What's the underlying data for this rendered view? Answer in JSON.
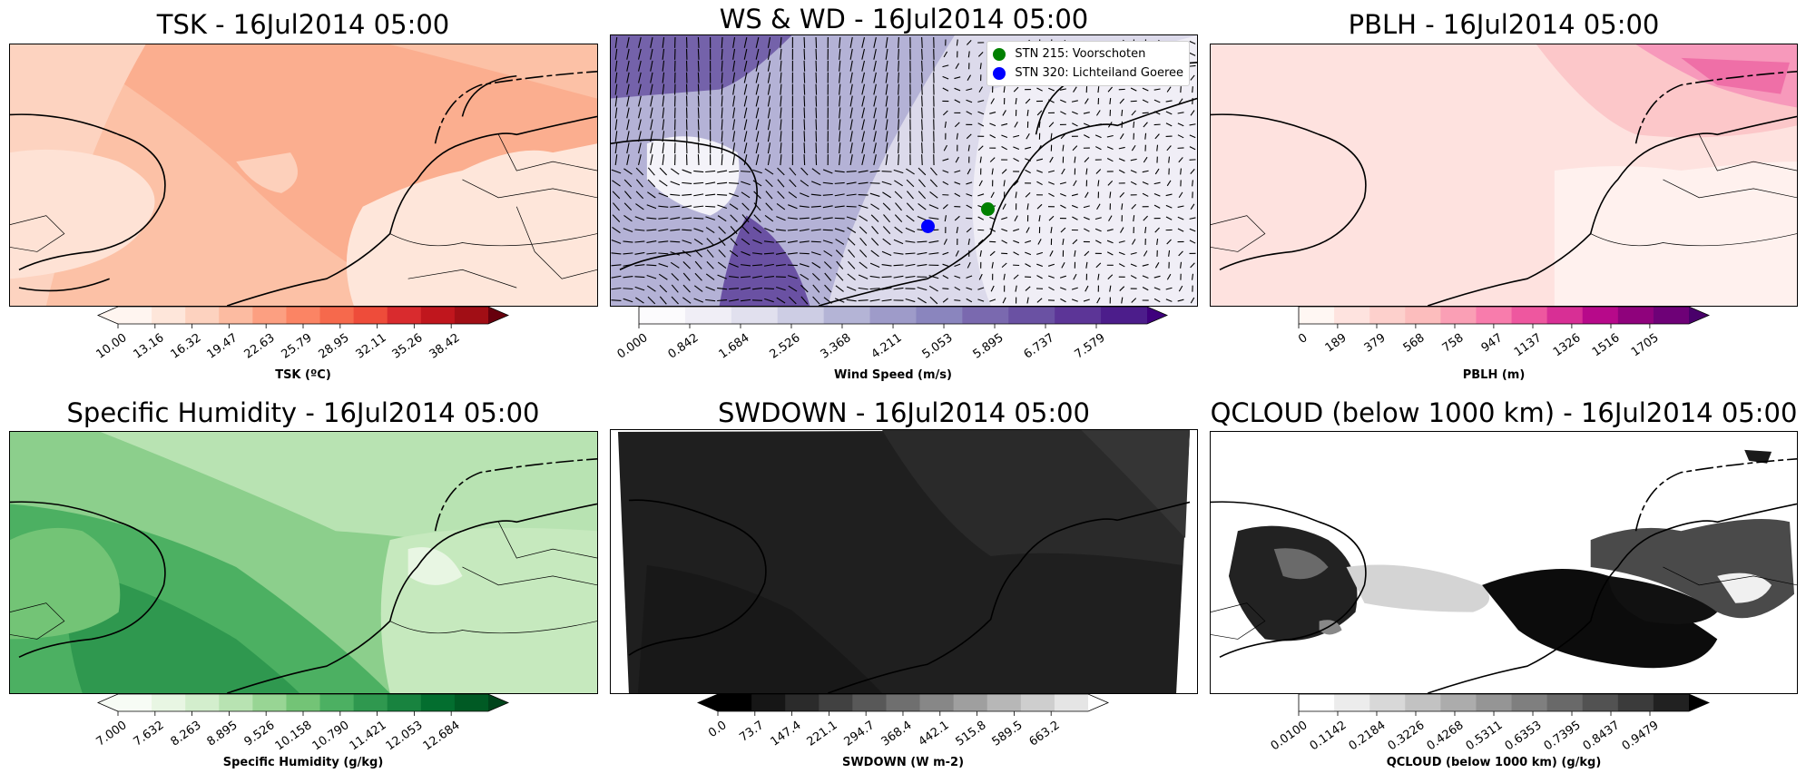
{
  "colors": {
    "tsk_ramp": [
      "#fff5f0",
      "#fee6da",
      "#fdd2bf",
      "#fcbba1",
      "#fc9f81",
      "#fb8464",
      "#f6694c",
      "#ee4c3a",
      "#d92b2e",
      "#c0161d",
      "#a10e15",
      "#67000d"
    ],
    "ws_ramp": [
      "#fcfbfd",
      "#f0eef6",
      "#e1e0ee",
      "#cdcde4",
      "#b4b4d6",
      "#9e9bc9",
      "#8a85be",
      "#7a69af",
      "#6a51a3",
      "#5c3597",
      "#4c1d8b",
      "#3f007d"
    ],
    "pblh_ramp": [
      "#fff7f3",
      "#fee3df",
      "#fdd0cc",
      "#fcbdbd",
      "#fa9fb5",
      "#f87cac",
      "#ee579f",
      "#d82f95",
      "#b7098a",
      "#8f027c",
      "#6e0177",
      "#49006a"
    ],
    "q_ramp": [
      "#f7fcf5",
      "#e8f6e3",
      "#d3eecd",
      "#b8e3b2",
      "#98d594",
      "#73c476",
      "#4cb062",
      "#2f984f",
      "#18833f",
      "#036e2f",
      "#005a24",
      "#00441b"
    ],
    "sw_ramp": [
      "#000000",
      "#161616",
      "#2b2b2b",
      "#414141",
      "#585858",
      "#6f6f6f",
      "#878787",
      "#9f9f9f",
      "#b7b7b7",
      "#cecece",
      "#e5e5e5",
      "#ffffff"
    ],
    "qc_ramp": [
      "#ffffff",
      "#ececec",
      "#d8d8d8",
      "#c2c2c2",
      "#acacac",
      "#959595",
      "#7f7f7f",
      "#696969",
      "#525252",
      "#3b3b3b",
      "#212121",
      "#000000"
    ],
    "stn215": "#008000",
    "stn320": "#0000ff"
  },
  "chart_data": [
    {
      "type": "heatmap",
      "title": "TSK - 16Jul2014 05:00",
      "colorbar_label": "TSK (ºC)",
      "colorbar_ticks": [
        "10.00",
        "13.16",
        "16.32",
        "19.47",
        "22.63",
        "25.79",
        "28.95",
        "32.11",
        "35.26",
        "38.42"
      ],
      "range": [
        10.0,
        41.58
      ],
      "extend": "both"
    },
    {
      "type": "heatmap",
      "title": "WS & WD - 16Jul2014 05:00",
      "colorbar_label": "Wind Speed (m/s)",
      "colorbar_ticks": [
        "0.000",
        "0.842",
        "1.684",
        "2.526",
        "3.368",
        "4.211",
        "5.053",
        "5.895",
        "6.737",
        "7.579"
      ],
      "range": [
        0.0,
        8.421
      ],
      "extend": "max",
      "legend": {
        "placement": "top-right",
        "entries": [
          "STN 215: Voorschoten",
          "STN 320: Lichteiland Goeree"
        ]
      },
      "stations": [
        {
          "name": "STN 215: Voorschoten",
          "lon": 4.44,
          "lat": 52.14
        },
        {
          "name": "STN 320: Lichteiland Goeree",
          "lon": 3.67,
          "lat": 51.93
        }
      ]
    },
    {
      "type": "heatmap",
      "title": "PBLH - 16Jul2014 05:00",
      "colorbar_label": "PBLH (m)",
      "colorbar_ticks": [
        "0",
        "189",
        "379",
        "568",
        "758",
        "947",
        "1137",
        "1326",
        "1516",
        "1705"
      ],
      "range": [
        0,
        1895
      ],
      "extend": "max"
    },
    {
      "type": "heatmap",
      "title": "Specific Humidity - 16Jul2014 05:00",
      "colorbar_label": "Specific Humidity (g/kg)",
      "colorbar_ticks": [
        "7.000",
        "7.632",
        "8.263",
        "8.895",
        "9.526",
        "10.158",
        "10.790",
        "11.421",
        "12.053",
        "12.684"
      ],
      "range": [
        7.0,
        13.316
      ],
      "extend": "both"
    },
    {
      "type": "heatmap",
      "title": "SWDOWN - 16Jul2014 05:00",
      "colorbar_label": "SWDOWN (W m-2)",
      "colorbar_ticks": [
        "0.0",
        "73.7",
        "147.4",
        "221.1",
        "294.7",
        "368.4",
        "442.1",
        "515.8",
        "589.5",
        "663.2"
      ],
      "range": [
        0.0,
        736.9
      ],
      "extend": "both"
    },
    {
      "type": "heatmap",
      "title": "QCLOUD (below 1000 km) - 16Jul2014 05:00",
      "colorbar_label": "QCLOUD (below 1000 km) (g/kg)",
      "colorbar_ticks": [
        "0.0100",
        "0.1142",
        "0.2184",
        "0.3226",
        "0.4268",
        "0.5311",
        "0.6353",
        "0.7395",
        "0.8437",
        "0.9479"
      ],
      "range": [
        0.01,
        1.0521
      ],
      "extend": "max"
    }
  ]
}
